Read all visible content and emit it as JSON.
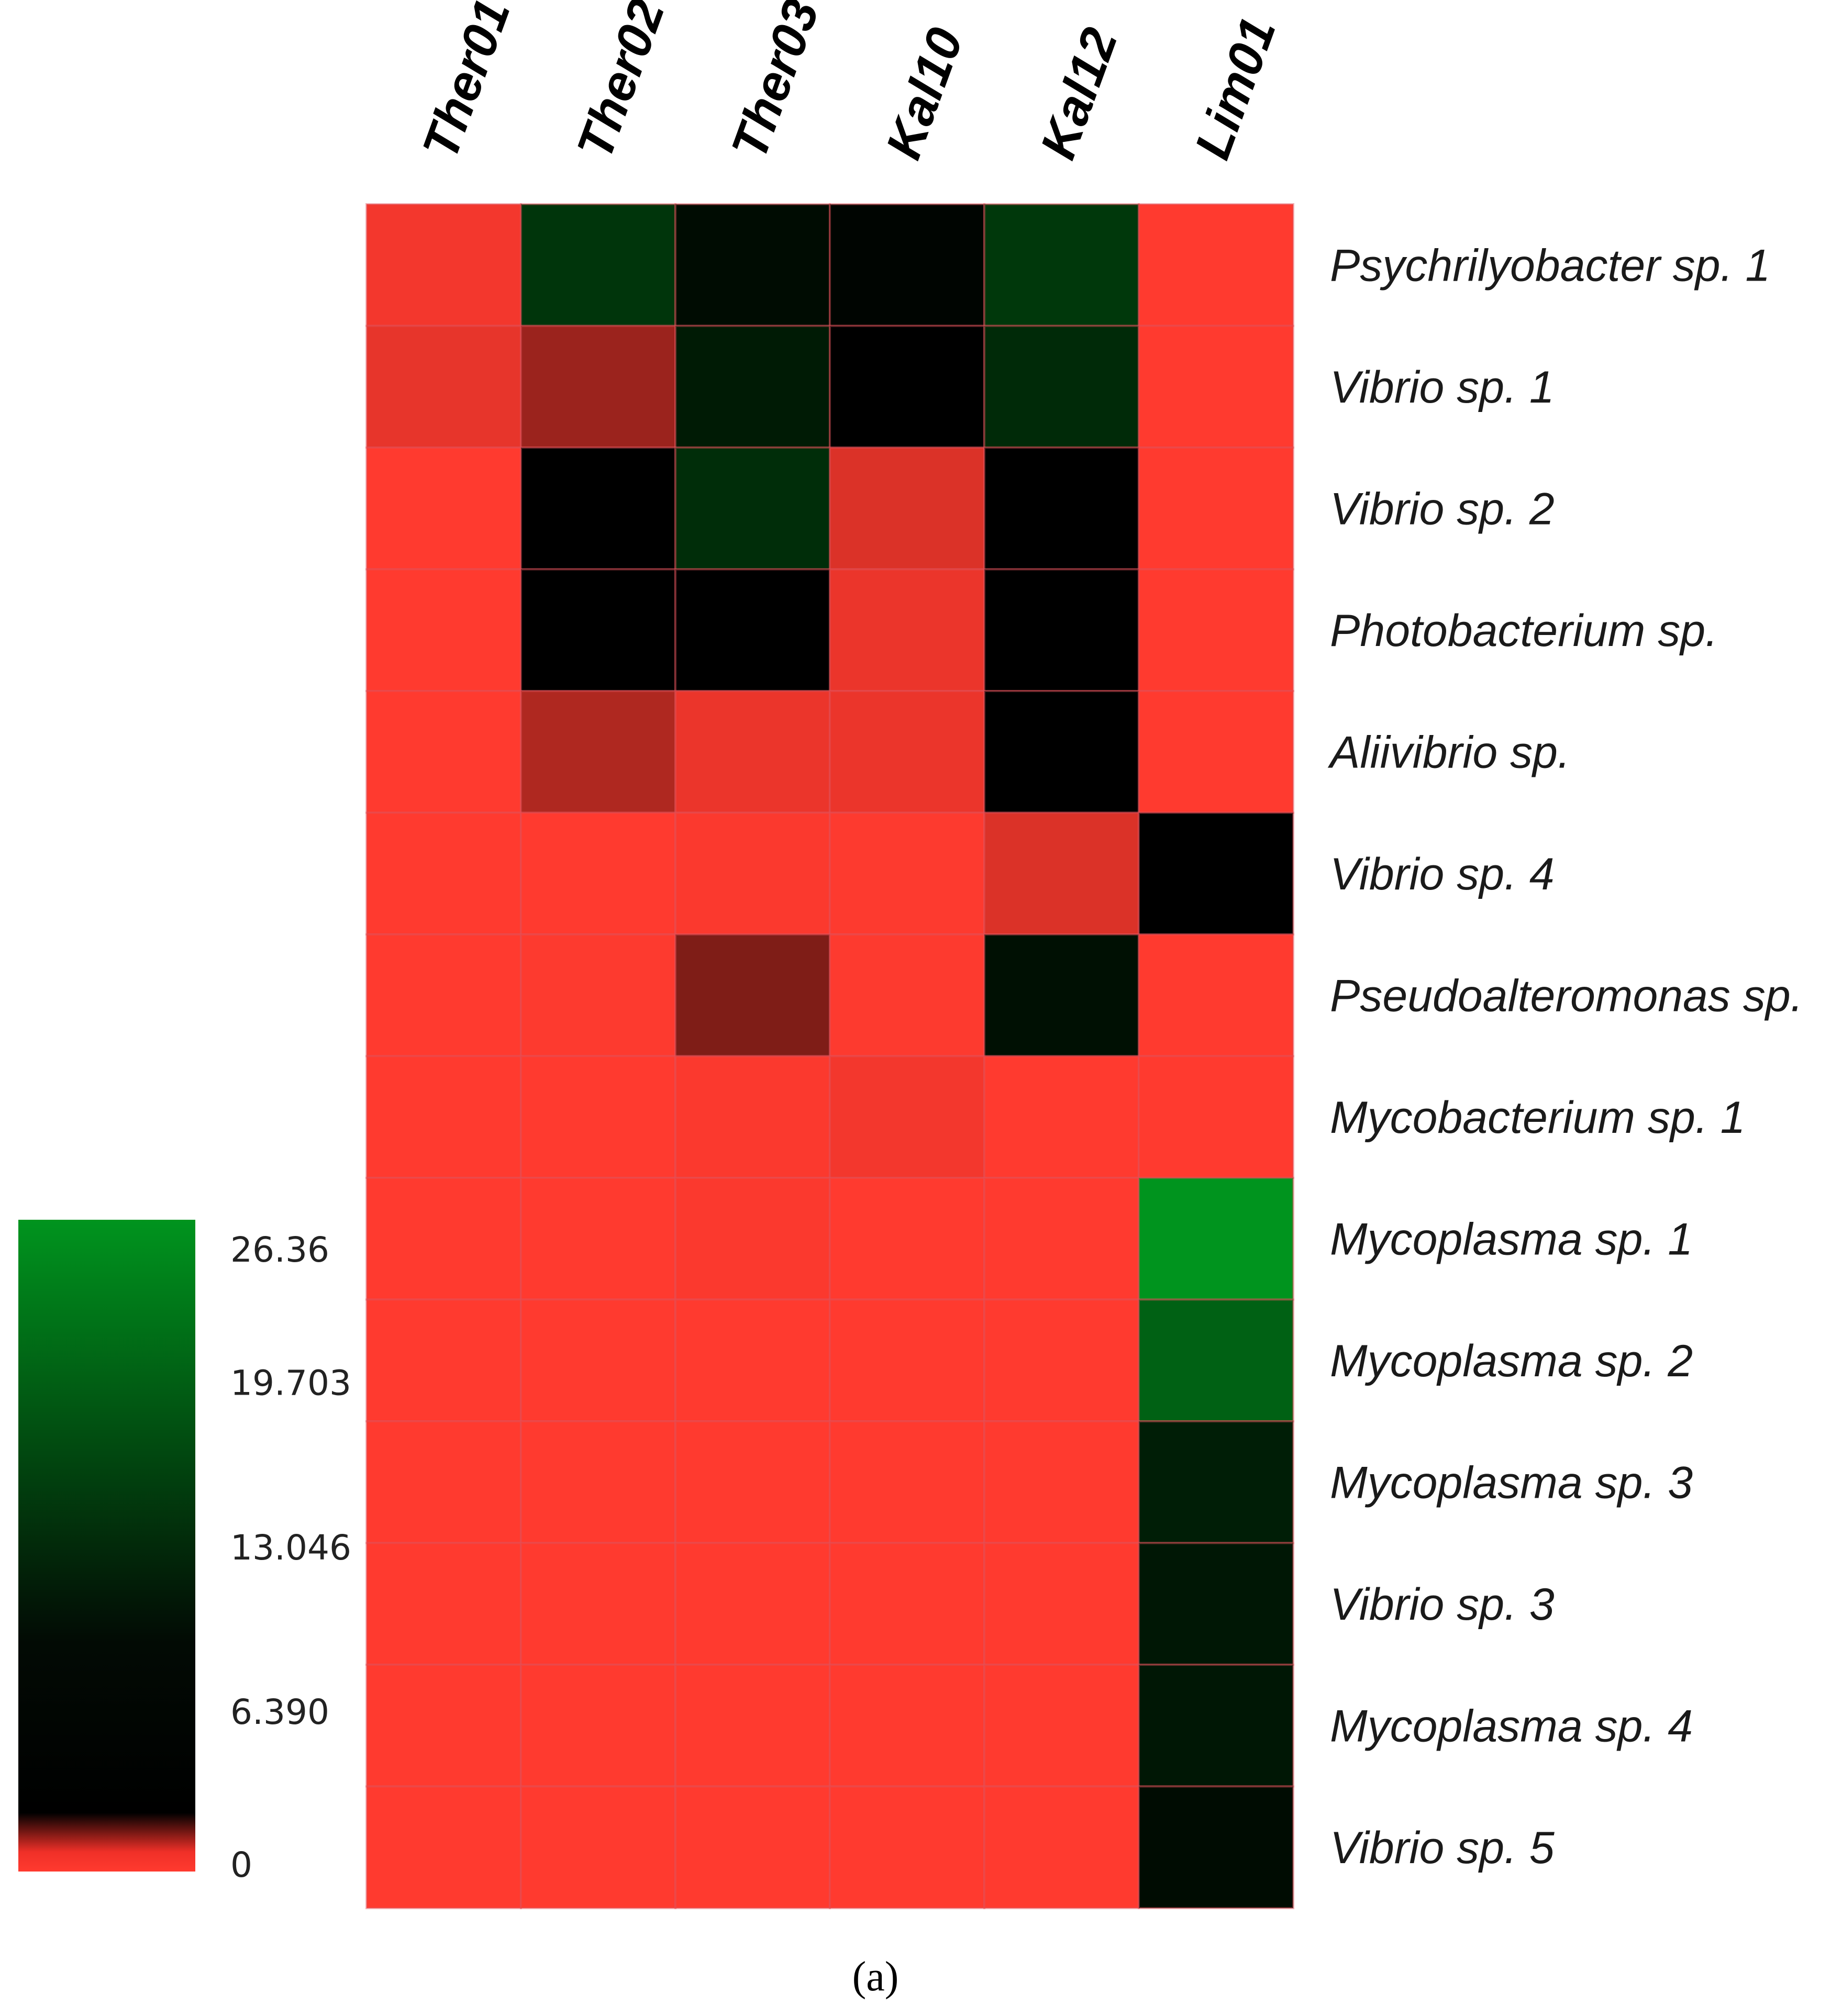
{
  "chart_data": {
    "type": "heatmap",
    "columns": [
      "Ther01",
      "Ther02",
      "Ther03",
      "Kal10",
      "Kal12",
      "Lim01"
    ],
    "rows": [
      "Psychrilyobacter sp. 1",
      "Vibrio sp. 1",
      "Vibrio sp. 2",
      "Photobacterium sp.",
      "Aliivibrio sp.",
      "Vibrio sp. 4",
      "Pseudoalteromonas sp.",
      "Mycobacterium sp. 1",
      "Mycoplasma sp. 1",
      "Mycoplasma sp. 2",
      "Mycoplasma sp. 3",
      "Vibrio sp. 3",
      "Mycoplasma sp. 4",
      "Vibrio sp. 5"
    ],
    "values": [
      [
        0.3,
        13.5,
        8.0,
        7.0,
        14.0,
        0.0
      ],
      [
        0.6,
        2.5,
        10.0,
        6.4,
        12.0,
        0.0
      ],
      [
        0.0,
        6.4,
        12.5,
        0.9,
        6.4,
        0.0
      ],
      [
        0.0,
        6.4,
        6.4,
        0.5,
        6.4,
        0.0
      ],
      [
        0.0,
        2.0,
        0.5,
        0.5,
        6.4,
        0.0
      ],
      [
        0.0,
        0.0,
        0.1,
        0.05,
        0.9,
        6.4
      ],
      [
        0.0,
        0.05,
        3.2,
        0.05,
        8.5,
        0.0
      ],
      [
        0.0,
        0.0,
        0.1,
        0.3,
        0.0,
        0.0
      ],
      [
        0.0,
        0.0,
        0.1,
        0.0,
        0.0,
        26.36
      ],
      [
        0.0,
        0.0,
        0.0,
        0.0,
        0.0,
        19.5
      ],
      [
        0.0,
        0.0,
        0.0,
        0.0,
        0.0,
        10.5
      ],
      [
        0.0,
        0.0,
        0.0,
        0.0,
        0.0,
        9.5
      ],
      [
        0.0,
        0.0,
        0.0,
        0.0,
        0.0,
        9.5
      ],
      [
        0.0,
        0.0,
        0.0,
        0.0,
        0.0,
        8.0
      ]
    ],
    "scale": {
      "min": 0,
      "max": 26.36,
      "ticks": [
        26.36,
        19.703,
        13.046,
        6.39,
        0
      ],
      "tick_labels": [
        "26.36",
        "19.703",
        "13.046",
        "6.390",
        "0"
      ]
    },
    "colors": {
      "low": "#ff3a2f",
      "mid": "#000000",
      "high": "#00941e"
    },
    "legend": "bottom-left",
    "caption": "(a)"
  }
}
